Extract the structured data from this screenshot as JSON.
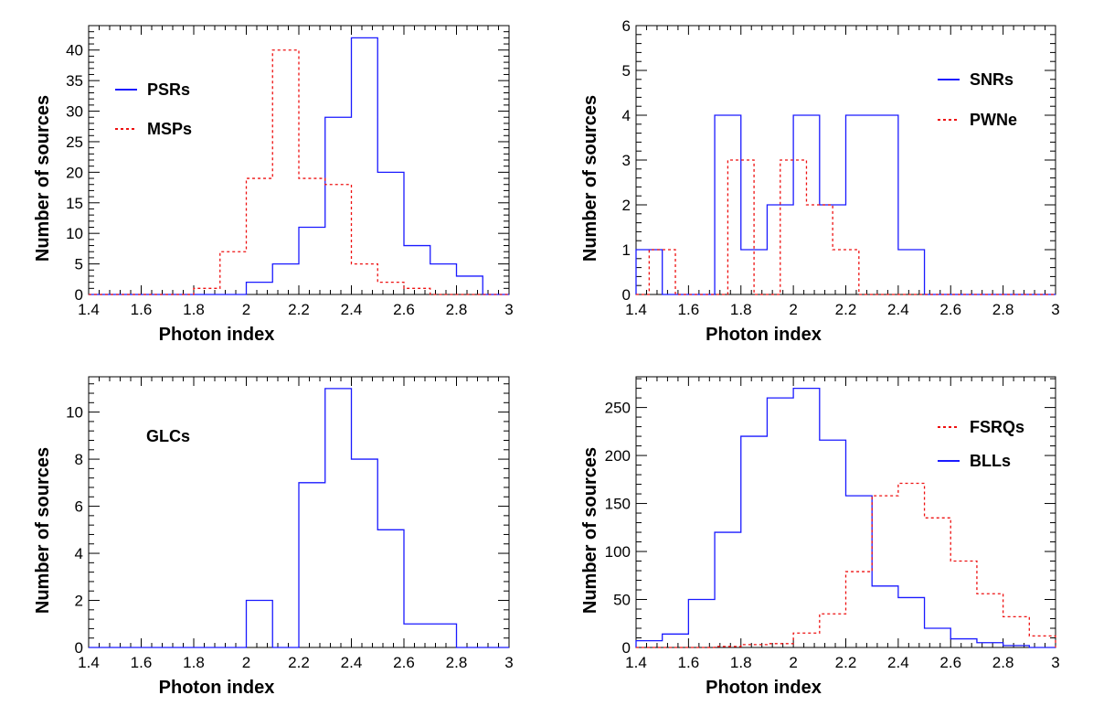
{
  "figure": {
    "description_text": ""
  },
  "colors": {
    "blue": "#1a1aff",
    "red": "#ee1111",
    "axis": "#000000"
  },
  "chart_data": [
    {
      "id": "psr-msp",
      "type": "histogram",
      "xlabel": "Photon index",
      "ylabel": "Number of sources",
      "xlim": [
        1.4,
        3.0
      ],
      "ylim": [
        0,
        44
      ],
      "xticks": [
        "1.4",
        "1.6",
        "1.8",
        "2",
        "2.2",
        "2.4",
        "2.6",
        "2.8",
        "3"
      ],
      "xtick_values": [
        1.4,
        1.6,
        1.8,
        2.0,
        2.2,
        2.4,
        2.6,
        2.8,
        3.0
      ],
      "yticks": [
        "0",
        "5",
        "10",
        "15",
        "20",
        "25",
        "30",
        "35",
        "40"
      ],
      "ytick_values": [
        0,
        5,
        10,
        15,
        20,
        25,
        30,
        35,
        40
      ],
      "bin_edges": [
        1.4,
        1.5,
        1.6,
        1.7,
        1.8,
        1.9,
        2.0,
        2.1,
        2.2,
        2.3,
        2.4,
        2.5,
        2.6,
        2.7,
        2.8,
        2.9,
        3.0
      ],
      "series": [
        {
          "name": "PSRs",
          "style": "solid",
          "color": "#1a1aff",
          "values": [
            0,
            0,
            0,
            0,
            0,
            0,
            2,
            5,
            11,
            29,
            42,
            20,
            8,
            5,
            3,
            0
          ]
        },
        {
          "name": "MSPs",
          "style": "dashed",
          "color": "#ee1111",
          "values": [
            0,
            0,
            0,
            0,
            1,
            7,
            19,
            40,
            19,
            18,
            5,
            2,
            1,
            0,
            0,
            0
          ]
        }
      ],
      "legend": [
        {
          "label": "PSRs",
          "style": "solid",
          "color": "#1a1aff"
        },
        {
          "label": "MSPs",
          "style": "dashed",
          "color": "#ee1111"
        }
      ]
    },
    {
      "id": "snr-pwn",
      "type": "histogram",
      "xlabel": "Photon index",
      "ylabel": "Number of sources",
      "xlim": [
        1.4,
        3.0
      ],
      "ylim": [
        0,
        6
      ],
      "xticks": [
        "1.4",
        "1.6",
        "1.8",
        "2",
        "2.2",
        "2.4",
        "2.6",
        "2.8",
        "3"
      ],
      "xtick_values": [
        1.4,
        1.6,
        1.8,
        2.0,
        2.2,
        2.4,
        2.6,
        2.8,
        3.0
      ],
      "yticks": [
        "0",
        "1",
        "2",
        "3",
        "4",
        "5",
        "6"
      ],
      "ytick_values": [
        0,
        1,
        2,
        3,
        4,
        5,
        6
      ],
      "bin_edges": [
        1.4,
        1.5,
        1.6,
        1.7,
        1.8,
        1.9,
        2.0,
        2.1,
        2.2,
        2.3,
        2.4,
        2.5,
        2.6,
        2.7,
        2.8,
        2.9,
        3.0
      ],
      "series": [
        {
          "name": "SNRs",
          "style": "solid",
          "color": "#1a1aff",
          "values": [
            1,
            0,
            0,
            4,
            1,
            2,
            4,
            2,
            4,
            4,
            1,
            0,
            0,
            0,
            0,
            0
          ]
        },
        {
          "name": "PWNe",
          "style": "dashed",
          "color": "#ee1111",
          "edges": [
            1.4,
            1.45,
            1.55,
            1.65,
            1.75,
            1.85,
            1.95,
            2.05,
            2.15,
            2.25,
            2.35,
            2.45,
            2.55,
            2.65,
            2.75,
            2.85,
            2.95,
            3.0
          ],
          "values": [
            0,
            1,
            0,
            0,
            3,
            0,
            3,
            2,
            1,
            0,
            0,
            0,
            0,
            0,
            0,
            0,
            0
          ]
        }
      ],
      "legend": [
        {
          "label": "SNRs",
          "style": "solid",
          "color": "#1a1aff"
        },
        {
          "label": "PWNe",
          "style": "dashed",
          "color": "#ee1111"
        }
      ]
    },
    {
      "id": "glc",
      "type": "histogram",
      "xlabel": "Photon index",
      "ylabel": "Number of sources",
      "xlim": [
        1.4,
        3.0
      ],
      "ylim": [
        0,
        11.5
      ],
      "xticks": [
        "1.4",
        "1.6",
        "1.8",
        "2",
        "2.2",
        "2.4",
        "2.6",
        "2.8",
        "3"
      ],
      "xtick_values": [
        1.4,
        1.6,
        1.8,
        2.0,
        2.2,
        2.4,
        2.6,
        2.8,
        3.0
      ],
      "yticks": [
        "0",
        "2",
        "4",
        "6",
        "8",
        "10"
      ],
      "ytick_values": [
        0,
        2,
        4,
        6,
        8,
        10
      ],
      "bin_edges": [
        1.4,
        1.5,
        1.6,
        1.7,
        1.8,
        1.9,
        2.0,
        2.1,
        2.2,
        2.3,
        2.4,
        2.5,
        2.6,
        2.7,
        2.8,
        2.9,
        3.0
      ],
      "series": [
        {
          "name": "GLCs",
          "style": "solid",
          "color": "#1a1aff",
          "values": [
            0,
            0,
            0,
            0,
            0,
            0,
            2,
            0,
            7,
            11,
            8,
            5,
            1,
            1,
            0,
            0
          ]
        }
      ],
      "legend": [
        {
          "label": "GLCs",
          "style": "none",
          "color": "#000000"
        }
      ]
    },
    {
      "id": "fsrq-bll",
      "type": "histogram",
      "xlabel": "Photon index",
      "ylabel": "Number of sources",
      "xlim": [
        1.4,
        3.0
      ],
      "ylim": [
        0,
        282
      ],
      "xticks": [
        "1.4",
        "1.6",
        "1.8",
        "2",
        "2.2",
        "2.4",
        "2.6",
        "2.8",
        "3"
      ],
      "xtick_values": [
        1.4,
        1.6,
        1.8,
        2.0,
        2.2,
        2.4,
        2.6,
        2.8,
        3.0
      ],
      "yticks": [
        "0",
        "50",
        "100",
        "150",
        "200",
        "250"
      ],
      "ytick_values": [
        0,
        50,
        100,
        150,
        200,
        250
      ],
      "bin_edges": [
        1.4,
        1.5,
        1.6,
        1.7,
        1.8,
        1.9,
        2.0,
        2.1,
        2.2,
        2.3,
        2.4,
        2.5,
        2.6,
        2.7,
        2.8,
        2.9,
        3.0
      ],
      "series": [
        {
          "name": "BLLs",
          "style": "solid",
          "color": "#1a1aff",
          "values": [
            7,
            14,
            50,
            120,
            220,
            260,
            270,
            216,
            158,
            64,
            52,
            20,
            9,
            5,
            2,
            0
          ]
        },
        {
          "name": "FSRQs",
          "style": "dashed",
          "color": "#ee1111",
          "values": [
            0,
            0,
            0,
            1,
            3,
            4,
            15,
            35,
            79,
            158,
            171,
            135,
            90,
            56,
            32,
            12
          ]
        }
      ],
      "legend": [
        {
          "label": "FSRQs",
          "style": "dashed",
          "color": "#ee1111"
        },
        {
          "label": "BLLs",
          "style": "solid",
          "color": "#1a1aff"
        }
      ]
    }
  ]
}
